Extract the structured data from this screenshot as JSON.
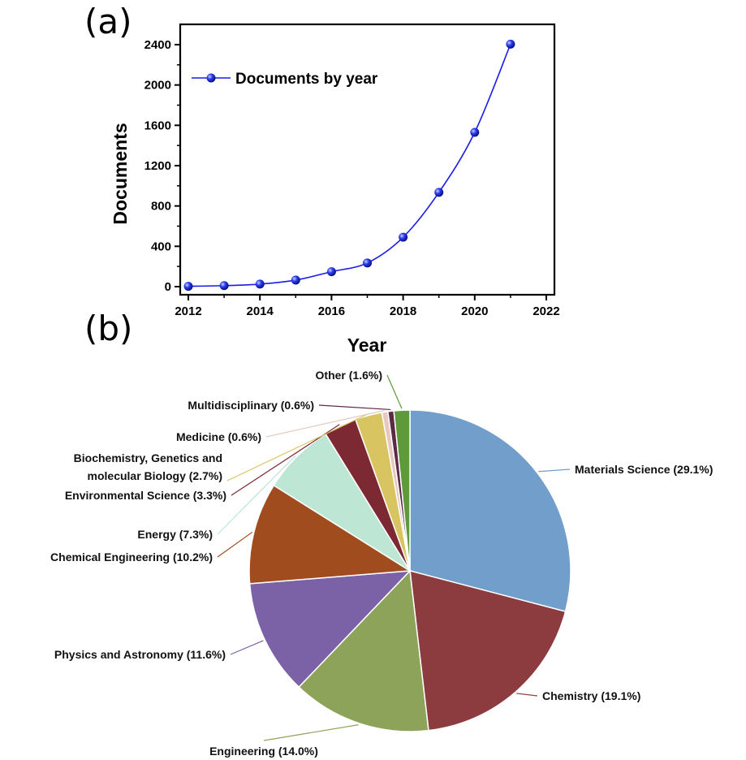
{
  "panels": {
    "a_label": "(a)",
    "b_label": "(b)"
  },
  "chart_data": [
    {
      "type": "line",
      "panel": "(a)",
      "title": "",
      "xlabel": "Year",
      "ylabel": "Documents",
      "xlim": [
        2012,
        2022
      ],
      "ylim": [
        0,
        2400
      ],
      "xticks": [
        2012,
        2014,
        2016,
        2018,
        2020,
        2022
      ],
      "yticks": [
        0,
        400,
        800,
        1200,
        1600,
        2000,
        2400
      ],
      "grid": false,
      "legend_position": "top-left",
      "series": [
        {
          "name": "Documents by year",
          "color": "#1a1aee",
          "marker": "sphere",
          "x": [
            2012,
            2013,
            2014,
            2015,
            2016,
            2017,
            2018,
            2019,
            2020,
            2021
          ],
          "y": [
            3,
            10,
            25,
            65,
            148,
            235,
            490,
            935,
            1530,
            2405
          ]
        }
      ]
    },
    {
      "type": "pie",
      "panel": "(b)",
      "title": "",
      "slices": [
        {
          "label": "Materials Science (29.1%)",
          "value": 29.1,
          "color": "#729ecb"
        },
        {
          "label": "Chemistry (19.1%)",
          "value": 19.1,
          "color": "#8c3c3e"
        },
        {
          "label": "Engineering (14.0%)",
          "value": 14.0,
          "color": "#8da35a"
        },
        {
          "label": "Physics and Astronomy (11.6%)",
          "value": 11.6,
          "color": "#7b62a6"
        },
        {
          "label": "Chemical Engineering (10.2%)",
          "value": 10.2,
          "color": "#a14c1f"
        },
        {
          "label": "Energy (7.3%)",
          "value": 7.3,
          "color": "#bde6d5"
        },
        {
          "label": "Environmental Science (3.3%)",
          "value": 3.3,
          "color": "#7d2934"
        },
        {
          "label": "Biochemistry, Genetics and molecular Biology (2.7%)",
          "value": 2.7,
          "color": "#d8c460"
        },
        {
          "label": "Medicine (0.6%)",
          "value": 0.6,
          "color": "#e6c8c0"
        },
        {
          "label": "Multidisciplinary (0.6%)",
          "value": 0.6,
          "color": "#5a2a46"
        },
        {
          "label": "Other (1.6%)",
          "value": 1.6,
          "color": "#5f9a3a"
        }
      ]
    }
  ]
}
